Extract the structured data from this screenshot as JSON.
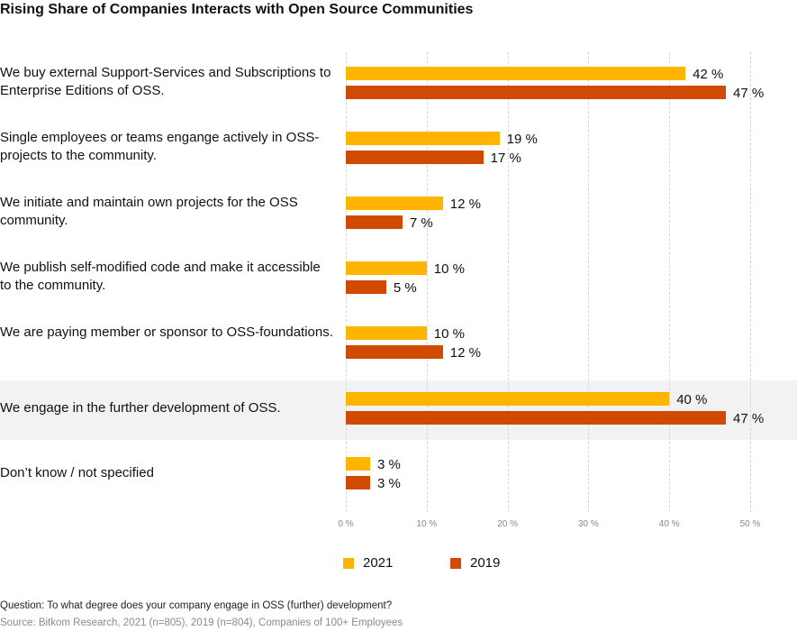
{
  "chart_data": {
    "type": "bar",
    "orientation": "horizontal",
    "title": "Rising Share of Companies Interacts with Open Source Communities",
    "categories": [
      "We buy external Support-Services and Subscriptions to Enterprise Editions of OSS.",
      "Single employees or teams engange actively in OSS-projects to the community.",
      "We initiate and maintain own projects for the OSS community.",
      "We publish self-modified code and make it accessible to the community.",
      "We are paying member or sponsor to OSS-foundations.",
      "We engage in the further development of OSS.",
      "Don’t know / not specified"
    ],
    "highlighted_category_index": 5,
    "series": [
      {
        "name": "2021",
        "color": "#FFB500",
        "values": [
          42,
          19,
          12,
          10,
          10,
          40,
          3
        ],
        "labels": [
          "42 %",
          "19 %",
          "12 %",
          "10 %",
          "10 %",
          "40 %",
          "3 %"
        ]
      },
      {
        "name": "2019",
        "color": "#D04A02",
        "values": [
          47,
          17,
          7,
          5,
          12,
          47,
          3
        ],
        "labels": [
          "47 %",
          "17 %",
          "7 %",
          "5 %",
          "12 %",
          "47 %",
          "3 %"
        ]
      }
    ],
    "xlim": [
      0,
      50
    ],
    "xticks": [
      0,
      10,
      20,
      30,
      40,
      50
    ],
    "xtick_labels": [
      "0 %",
      "10 %",
      "20 %",
      "30 %",
      "40 %",
      "50 %"
    ],
    "grid": "vertical dashed",
    "legend": "bottom",
    "xlabel": "",
    "ylabel": ""
  },
  "footer": {
    "question": "Question: To what degree does your company engage in OSS (further) development?",
    "source": "Source: Bitkom Research, 2021 (n=805), 2019 (n=804), Companies of 100+ Employees"
  }
}
